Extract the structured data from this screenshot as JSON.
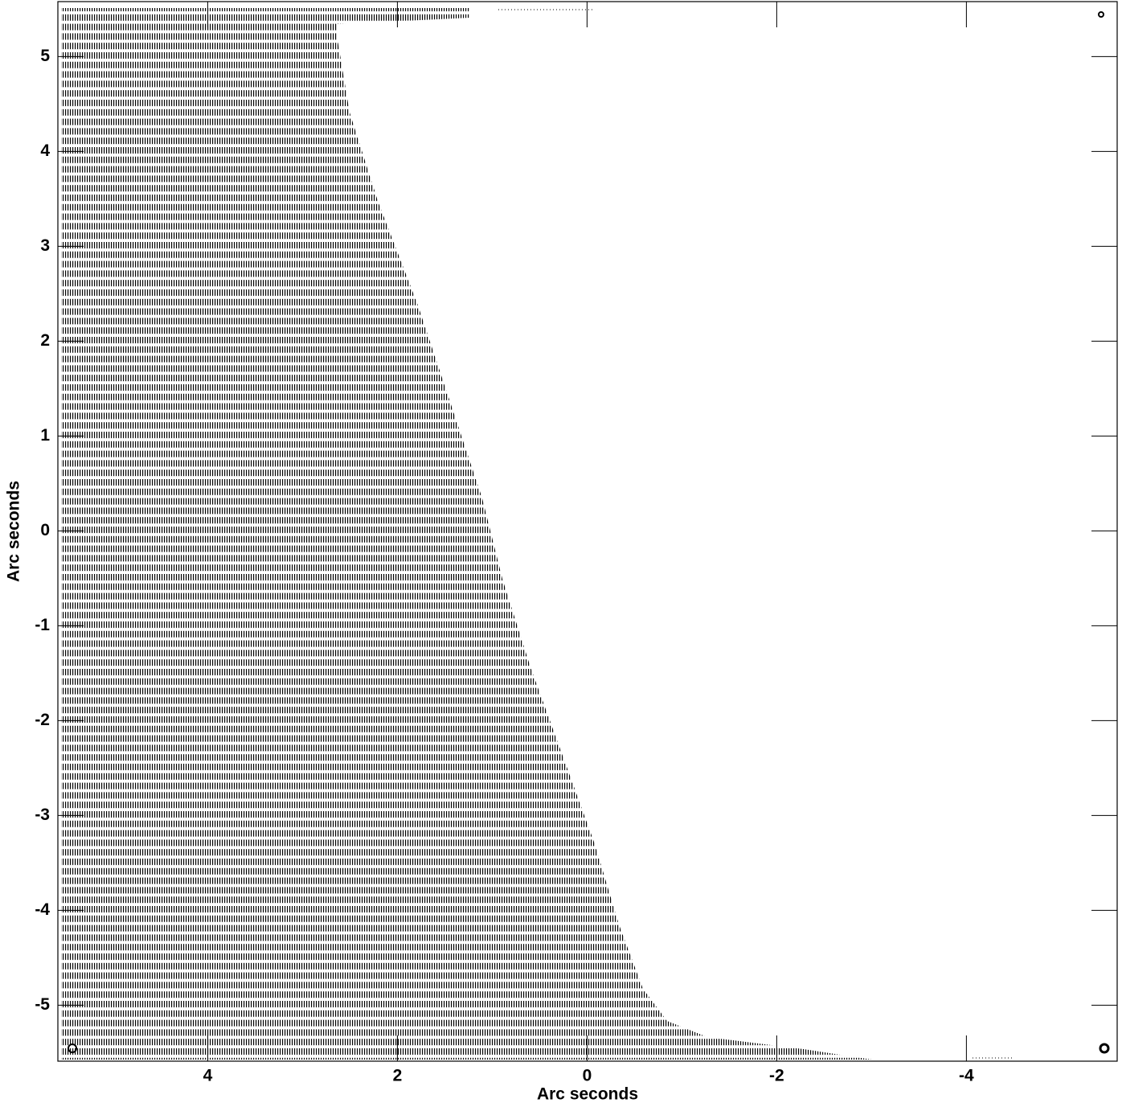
{
  "chart_data": {
    "type": "contour",
    "x_label": "Arc seconds",
    "y_label": "Arc seconds",
    "xlim": [
      5.58,
      -5.59
    ],
    "ylim": [
      -5.59,
      5.58
    ],
    "xticks": [
      4,
      2,
      0,
      -2,
      -4
    ],
    "yticks": [
      5,
      4,
      3,
      2,
      1,
      0,
      -1,
      -2,
      -3,
      -4,
      -5
    ]
  }
}
